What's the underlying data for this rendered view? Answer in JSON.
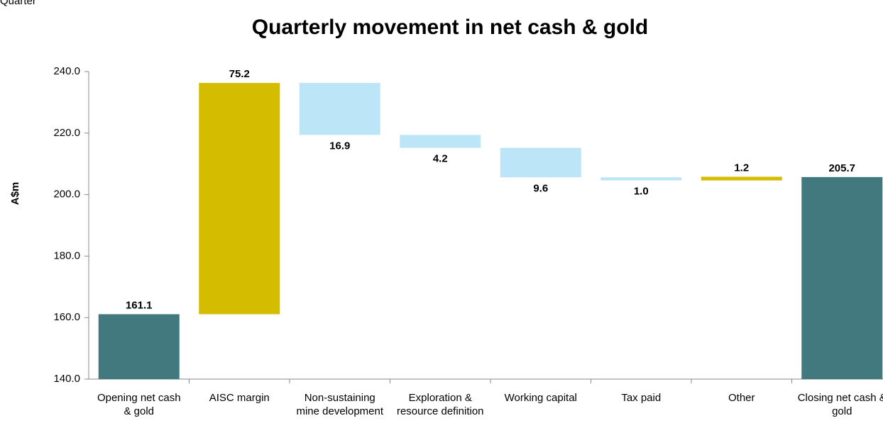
{
  "header": {
    "text": "Quarter"
  },
  "chart_data": {
    "type": "waterfall",
    "title": "Quarterly movement in net cash & gold",
    "y_label": "A$m",
    "categories": [
      "Opening net cash & gold",
      "AISC margin",
      "Non-sustaining mine development",
      "Exploration & resource definition",
      "Working capital",
      "Tax paid",
      "Other",
      "Closing net cash & gold"
    ],
    "values": [
      161.1,
      75.2,
      -16.9,
      -4.2,
      -9.6,
      -1.0,
      1.2,
      205.7
    ],
    "value_labels": [
      "161.1",
      "75.2",
      "16.9",
      "4.2",
      "9.6",
      "1.0",
      "1.2",
      "205.7"
    ],
    "measures": [
      "total",
      "relative",
      "relative",
      "relative",
      "relative",
      "relative",
      "relative",
      "total"
    ],
    "colors": [
      "#41797f",
      "#d4bc00",
      "#bde5f8",
      "#bde5f8",
      "#bde5f8",
      "#bde5f8",
      "#d4bc00",
      "#41797f"
    ],
    "ylim": [
      140,
      240
    ],
    "yticks": [
      {
        "value": 140,
        "label": "140.0"
      },
      {
        "value": 160,
        "label": "160.0"
      },
      {
        "value": 180,
        "label": "180.0"
      },
      {
        "value": 200,
        "label": "200.0"
      },
      {
        "value": 220,
        "label": "220.0"
      },
      {
        "value": 240,
        "label": "240.0"
      }
    ],
    "grid": false
  }
}
